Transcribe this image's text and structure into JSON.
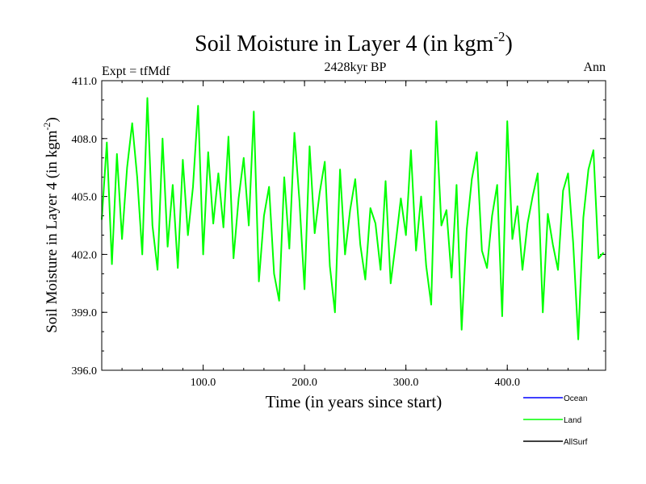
{
  "chart_data": {
    "type": "line",
    "title": "Soil Moisture in Layer 4 (in kgm",
    "title_sup": "-2",
    "title_close": ")",
    "subtitle": "2428kyr BP",
    "left_label": "Expt = tfMdf",
    "right_label": "Ann",
    "xlabel": "Time (in years since start)",
    "ylabel": "Soil Moisture in Layer 4 (in kgm",
    "ylabel_sup": "-2",
    "ylabel_close": ")",
    "xlim": [
      0,
      497
    ],
    "ylim": [
      396.0,
      411.0
    ],
    "x_ticks": [
      100,
      200,
      300,
      400
    ],
    "x_tick_labels": [
      "100.0",
      "200.0",
      "300.0",
      "400.0"
    ],
    "y_ticks": [
      396.0,
      399.0,
      402.0,
      405.0,
      408.0,
      411.0
    ],
    "y_tick_labels": [
      "396.0",
      "399.0",
      "402.0",
      "405.0",
      "408.0",
      "411.0"
    ],
    "legend": [
      {
        "name": "Ocean",
        "color": "#0000ff"
      },
      {
        "name": "Land",
        "color": "#00ff00"
      },
      {
        "name": "AllSurf",
        "color": "#000000"
      }
    ],
    "series": [
      {
        "name": "Land",
        "color": "#00ff00",
        "x": [
          0,
          5,
          10,
          15,
          20,
          25,
          30,
          35,
          40,
          45,
          50,
          55,
          60,
          65,
          70,
          75,
          80,
          85,
          90,
          95,
          100,
          105,
          110,
          115,
          120,
          125,
          130,
          135,
          140,
          145,
          150,
          155,
          160,
          165,
          170,
          175,
          180,
          185,
          190,
          195,
          200,
          205,
          210,
          215,
          220,
          225,
          230,
          235,
          240,
          245,
          250,
          255,
          260,
          265,
          270,
          275,
          280,
          285,
          290,
          295,
          300,
          305,
          310,
          315,
          320,
          325,
          330,
          335,
          340,
          345,
          350,
          355,
          360,
          365,
          370,
          375,
          380,
          385,
          390,
          395,
          400,
          405,
          410,
          415,
          420,
          425,
          430,
          435,
          440,
          445,
          450,
          455,
          460,
          465,
          470,
          475,
          480,
          485,
          490,
          495
        ],
        "values": [
          403.8,
          407.8,
          401.5,
          407.2,
          402.8,
          406.5,
          408.8,
          406.0,
          402.0,
          410.1,
          403.5,
          401.2,
          408.0,
          402.4,
          405.6,
          401.3,
          406.9,
          403.0,
          405.5,
          409.7,
          402.0,
          407.3,
          403.6,
          406.2,
          403.4,
          408.1,
          401.8,
          404.9,
          407.0,
          403.5,
          409.4,
          400.6,
          404.0,
          405.5,
          401.0,
          399.6,
          406.0,
          402.3,
          408.3,
          404.8,
          400.2,
          407.6,
          403.1,
          405.2,
          406.8,
          401.4,
          399.0,
          406.4,
          402.0,
          404.3,
          405.9,
          402.5,
          400.7,
          404.4,
          403.6,
          401.2,
          405.8,
          400.5,
          402.6,
          404.9,
          403.0,
          407.4,
          402.2,
          405.0,
          401.4,
          399.4,
          408.9,
          403.5,
          404.3,
          400.8,
          405.6,
          398.1,
          403.3,
          405.9,
          407.3,
          402.2,
          401.3,
          404.0,
          405.6,
          398.8,
          408.9,
          402.8,
          404.5,
          401.2,
          403.6,
          405.0,
          406.2,
          399.0,
          404.1,
          402.5,
          401.2,
          405.3,
          406.2,
          402.6,
          397.6,
          403.9,
          406.4,
          407.4,
          401.8,
          402.1
        ]
      }
    ]
  }
}
